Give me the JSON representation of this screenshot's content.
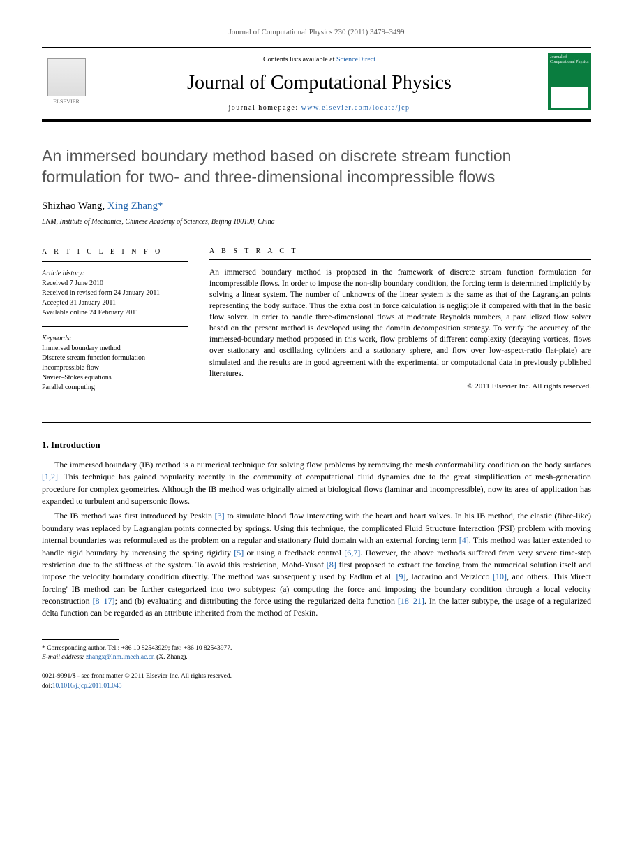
{
  "header_citation": "Journal of Computational Physics 230 (2011) 3479–3499",
  "masthead": {
    "contents_prefix": "Contents lists available at ",
    "contents_link": "ScienceDirect",
    "journal_name": "Journal of Computational Physics",
    "homepage_prefix": "journal homepage: ",
    "homepage_url": "www.elsevier.com/locate/jcp",
    "elsevier_label": "ELSEVIER",
    "cover_text": "Journal of Computational Physics"
  },
  "title": "An immersed boundary method based on discrete stream function formulation for two- and three-dimensional incompressible flows",
  "authors": {
    "a1": "Shizhao Wang",
    "a2": "Xing Zhang",
    "sep": ", ",
    "corr_marker": "*"
  },
  "affiliation": "LNM, Institute of Mechanics, Chinese Academy of Sciences, Beijing 100190, China",
  "info": {
    "heading": "A R T I C L E   I N F O",
    "history_label": "Article history:",
    "received": "Received 7 June 2010",
    "revised": "Received in revised form 24 January 2011",
    "accepted": "Accepted 31 January 2011",
    "online": "Available online 24 February 2011",
    "keywords_label": "Keywords:",
    "k1": "Immersed boundary method",
    "k2": "Discrete stream function formulation",
    "k3": "Incompressible flow",
    "k4": "Navier–Stokes equations",
    "k5": "Parallel computing"
  },
  "abstract": {
    "heading": "A B S T R A C T",
    "text": "An immersed boundary method is proposed in the framework of discrete stream function formulation for incompressible flows. In order to impose the non-slip boundary condition, the forcing term is determined implicitly by solving a linear system. The number of unknowns of the linear system is the same as that of the Lagrangian points representing the body surface. Thus the extra cost in force calculation is negligible if compared with that in the basic flow solver. In order to handle three-dimensional flows at moderate Reynolds numbers, a parallelized flow solver based on the present method is developed using the domain decomposition strategy. To verify the accuracy of the immersed-boundary method proposed in this work, flow problems of different complexity (decaying vortices, flows over stationary and oscillating cylinders and a stationary sphere, and flow over low-aspect-ratio flat-plate) are simulated and the results are in good agreement with the experimental or computational data in previously published literatures.",
    "copyright": "© 2011 Elsevier Inc. All rights reserved."
  },
  "section1": {
    "heading": "1. Introduction",
    "p1_a": "The immersed boundary (IB) method is a numerical technique for solving flow problems by removing the mesh conformability condition on the body surfaces ",
    "p1_ref1": "[1,2]",
    "p1_b": ". This technique has gained popularity recently in the community of computational fluid dynamics due to the great simplification of mesh-generation procedure for complex geometries. Although the IB method was originally aimed at biological flows (laminar and incompressible), now its area of application has expanded to turbulent and supersonic flows.",
    "p2_a": "The IB method was first introduced by Peskin ",
    "p2_ref1": "[3]",
    "p2_b": " to simulate blood flow interacting with the heart and heart valves. In his IB method, the elastic (fibre-like) boundary was replaced by Lagrangian points connected by springs. Using this technique, the complicated Fluid Structure Interaction (FSI) problem with moving internal boundaries was reformulated as the problem on a regular and stationary fluid domain with an external forcing term ",
    "p2_ref2": "[4]",
    "p2_c": ". This method was latter extended to handle rigid boundary by increasing the spring rigidity ",
    "p2_ref3": "[5]",
    "p2_d": " or using a feedback control ",
    "p2_ref4": "[6,7]",
    "p2_e": ". However, the above methods suffered from very severe time-step restriction due to the stiffness of the system. To avoid this restriction, Mohd-Yusof ",
    "p2_ref5": "[8]",
    "p2_f": " first proposed to extract the forcing from the numerical solution itself and impose the velocity boundary condition directly. The method was subsequently used by Fadlun et al. ",
    "p2_ref6": "[9]",
    "p2_g": ", Iaccarino and Verzicco ",
    "p2_ref7": "[10]",
    "p2_h": ", and others. This 'direct forcing' IB method can be further categorized into two subtypes: (a) computing the force and imposing the boundary condition through a local velocity reconstruction ",
    "p2_ref8": "[8–17]",
    "p2_i": "; and (b) evaluating and distributing the force using the regularized delta function ",
    "p2_ref9": "[18–21]",
    "p2_j": ". In the latter subtype, the usage of a regularized delta function can be regarded as an attribute inherited from the method of Peskin."
  },
  "footnote": {
    "corr": "* Corresponding author. Tel.: +86 10 82543929; fax: +86 10 82543977.",
    "email_label": "E-mail address: ",
    "email": "zhangx@lnm.imech.ac.cn",
    "email_suffix": " (X. Zhang)."
  },
  "footer": {
    "line1": "0021-9991/$ - see front matter © 2011 Elsevier Inc. All rights reserved.",
    "doi_label": "doi:",
    "doi": "10.1016/j.jcp.2011.01.045"
  }
}
